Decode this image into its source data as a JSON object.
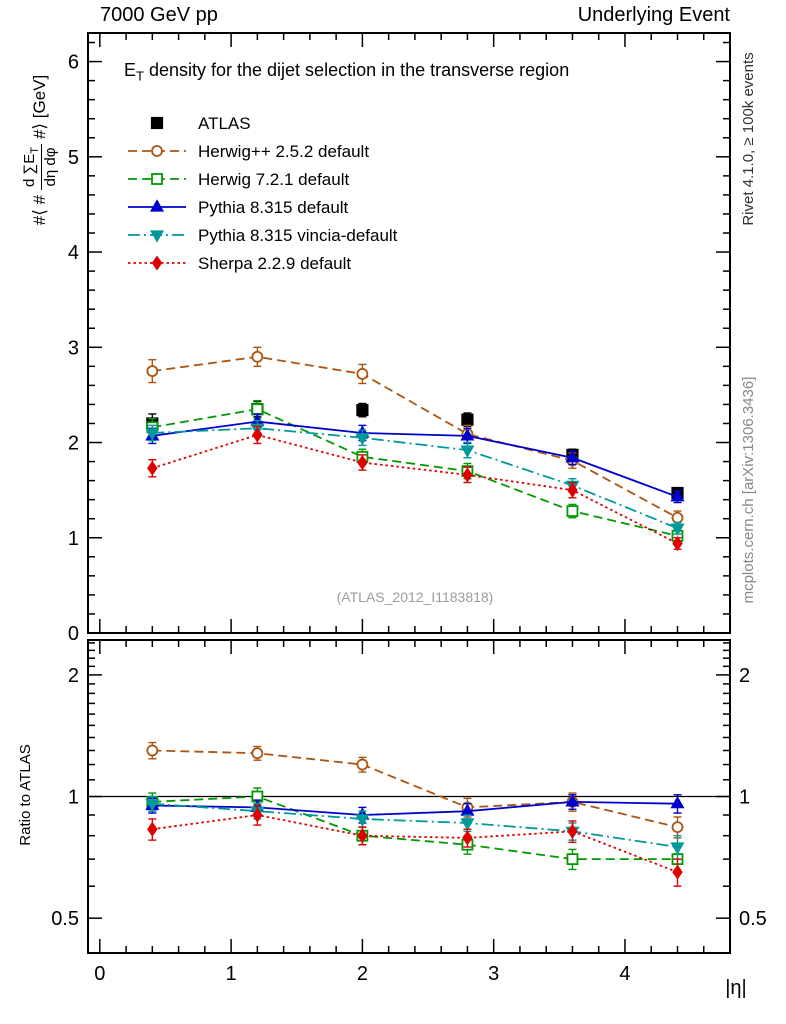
{
  "header": {
    "left": "7000 GeV pp",
    "right": "Underlying Event"
  },
  "plot_title": {
    "main": "E",
    "sub": "T",
    "rest": " density  for the dijet selection in the transverse region"
  },
  "y_axis_label": {
    "pre": "#⟨ #",
    "num": "d ∑E",
    "num_sub": "T",
    "den": "dη dφ",
    "post": "#⟩ [GeV]"
  },
  "side_labels": {
    "right_top": "Rivet 4.1.0, ≥ 100k events",
    "right_bottom": "mcplots.cern.ch [arXiv:1306.3436]"
  },
  "watermark": "(ATLAS_2012_I1183818)",
  "chart_data": {
    "type": "line",
    "title": "E_T density for the dijet selection in the transverse region",
    "xlabel": "|η|",
    "x_values": [
      0.4,
      1.2,
      2.0,
      2.8,
      3.6,
      4.4
    ],
    "xlim": [
      -0.09,
      4.8
    ],
    "xticks": [
      0,
      1,
      2,
      3,
      4
    ],
    "main_panel": {
      "ylabel": "⟨d ΣE_T / dη dφ⟩ [GeV]",
      "ylim": [
        0,
        6.3
      ],
      "yticks": [
        0,
        1,
        2,
        3,
        4,
        5,
        6
      ],
      "scale": "linear"
    },
    "ratio_panel": {
      "ylabel": "Ratio to ATLAS",
      "ylim": [
        0.41,
        2.44
      ],
      "yticks": [
        0.5,
        1,
        2
      ],
      "scale": "log",
      "reference_line": 1
    },
    "legend_position": "top-left",
    "series": [
      {
        "name": "ATLAS",
        "color": "#000000",
        "marker": "square",
        "fill": "filled",
        "line_style": "none",
        "size": 11,
        "values": [
          2.2,
          2.35,
          2.34,
          2.24,
          1.87,
          1.47
        ],
        "errors": [
          0.1,
          0.08,
          0.07,
          0.07,
          0.06,
          0.05
        ]
      },
      {
        "name": "Herwig++ 2.5.2 default",
        "color": "#aa5511",
        "marker": "circle",
        "fill": "open",
        "line_style": "dashed",
        "values": [
          2.75,
          2.9,
          2.72,
          2.09,
          1.81,
          1.21
        ],
        "errors": [
          0.12,
          0.1,
          0.1,
          0.09,
          0.08,
          0.07
        ],
        "ratio": [
          1.3,
          1.28,
          1.2,
          0.94,
          0.97,
          0.84
        ],
        "ratio_errors": [
          0.06,
          0.05,
          0.05,
          0.05,
          0.05,
          0.05
        ]
      },
      {
        "name": "Herwig 7.2.1 default",
        "color": "#009900",
        "marker": "square",
        "fill": "open",
        "line_style": "dashed",
        "values": [
          2.16,
          2.35,
          1.85,
          1.7,
          1.28,
          1.02
        ],
        "errors": [
          0.09,
          0.09,
          0.08,
          0.08,
          0.07,
          0.06
        ],
        "ratio": [
          0.97,
          1.0,
          0.8,
          0.76,
          0.7,
          0.7
        ],
        "ratio_errors": [
          0.05,
          0.05,
          0.04,
          0.04,
          0.04,
          0.05
        ]
      },
      {
        "name": "Pythia 8.315 default",
        "color": "#0000cc",
        "marker": "triangle-up",
        "fill": "filled",
        "line_style": "solid",
        "values": [
          2.07,
          2.22,
          2.1,
          2.07,
          1.84,
          1.43
        ],
        "errors": [
          0.08,
          0.08,
          0.08,
          0.08,
          0.07,
          0.06
        ],
        "ratio": [
          0.95,
          0.94,
          0.9,
          0.92,
          0.97,
          0.96
        ],
        "ratio_errors": [
          0.04,
          0.04,
          0.04,
          0.04,
          0.04,
          0.05
        ]
      },
      {
        "name": "Pythia 8.315 vincia-default",
        "color": "#009999",
        "marker": "triangle-down",
        "fill": "filled",
        "line_style": "dashdot",
        "values": [
          2.1,
          2.15,
          2.05,
          1.92,
          1.55,
          1.1
        ],
        "errors": [
          0.08,
          0.08,
          0.08,
          0.08,
          0.07,
          0.06
        ],
        "ratio": [
          0.96,
          0.92,
          0.88,
          0.86,
          0.82,
          0.75
        ],
        "ratio_errors": [
          0.04,
          0.04,
          0.04,
          0.04,
          0.04,
          0.05
        ]
      },
      {
        "name": "Sherpa 2.2.9 default",
        "color": "#e00000",
        "marker": "diamond",
        "fill": "filled",
        "line_style": "dotted",
        "values": [
          1.73,
          2.08,
          1.79,
          1.66,
          1.5,
          0.94
        ],
        "errors": [
          0.09,
          0.09,
          0.08,
          0.08,
          0.08,
          0.06
        ],
        "ratio": [
          0.83,
          0.9,
          0.8,
          0.79,
          0.82,
          0.65
        ],
        "ratio_errors": [
          0.05,
          0.05,
          0.04,
          0.04,
          0.05,
          0.05
        ]
      }
    ]
  }
}
